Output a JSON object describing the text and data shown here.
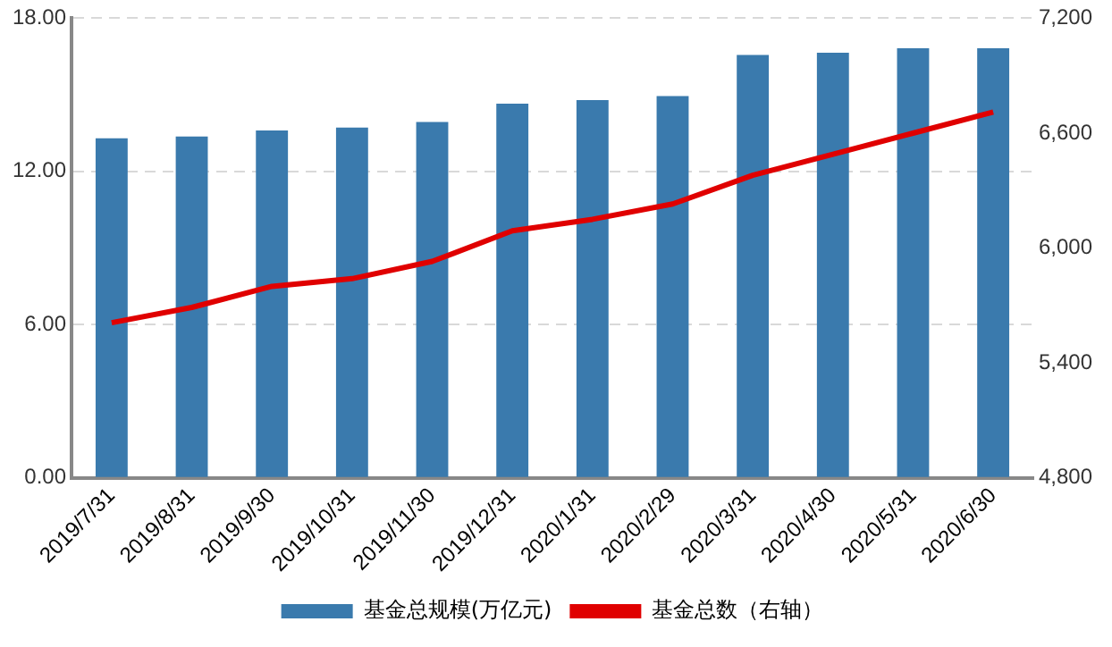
{
  "chart_data": {
    "type": "bar",
    "categories": [
      "2019/7/31",
      "2019/8/31",
      "2019/9/30",
      "2019/10/31",
      "2019/11/30",
      "2019/12/31",
      "2020/1/31",
      "2020/2/29",
      "2020/3/31",
      "2020/4/30",
      "2020/5/31",
      "2020/6/30"
    ],
    "series": [
      {
        "name": "基金总规模(万亿元)",
        "color": "#3a7aad",
        "values": [
          13.3,
          13.37,
          13.6,
          13.72,
          13.94,
          14.65,
          14.79,
          14.95,
          16.56,
          16.65,
          16.82,
          16.82
        ]
      },
      {
        "name": "基金总数（右轴）",
        "type": "line",
        "axis": "y2",
        "color": "#e00000",
        "values": [
          5610,
          5690,
          5800,
          5840,
          5930,
          6090,
          6150,
          6230,
          6380,
          6490,
          6600,
          6710
        ]
      }
    ],
    "ylim": [
      0,
      18
    ],
    "yticks": [
      {
        "value": 0,
        "label": "0.00"
      },
      {
        "value": 6,
        "label": "6.00"
      },
      {
        "value": 12,
        "label": "12.00"
      },
      {
        "value": 18,
        "label": "18.00"
      }
    ],
    "y2lim": [
      4800,
      7200
    ],
    "y2ticks": [
      {
        "value": 4800,
        "label": "4,800"
      },
      {
        "value": 5400,
        "label": "5,400"
      },
      {
        "value": 6000,
        "label": "6,000"
      },
      {
        "value": 6600,
        "label": "6,600"
      },
      {
        "value": 7200,
        "label": "7,200"
      }
    ],
    "grid": "y",
    "legend": "bottom",
    "marker": "none",
    "line_style": "solid"
  }
}
